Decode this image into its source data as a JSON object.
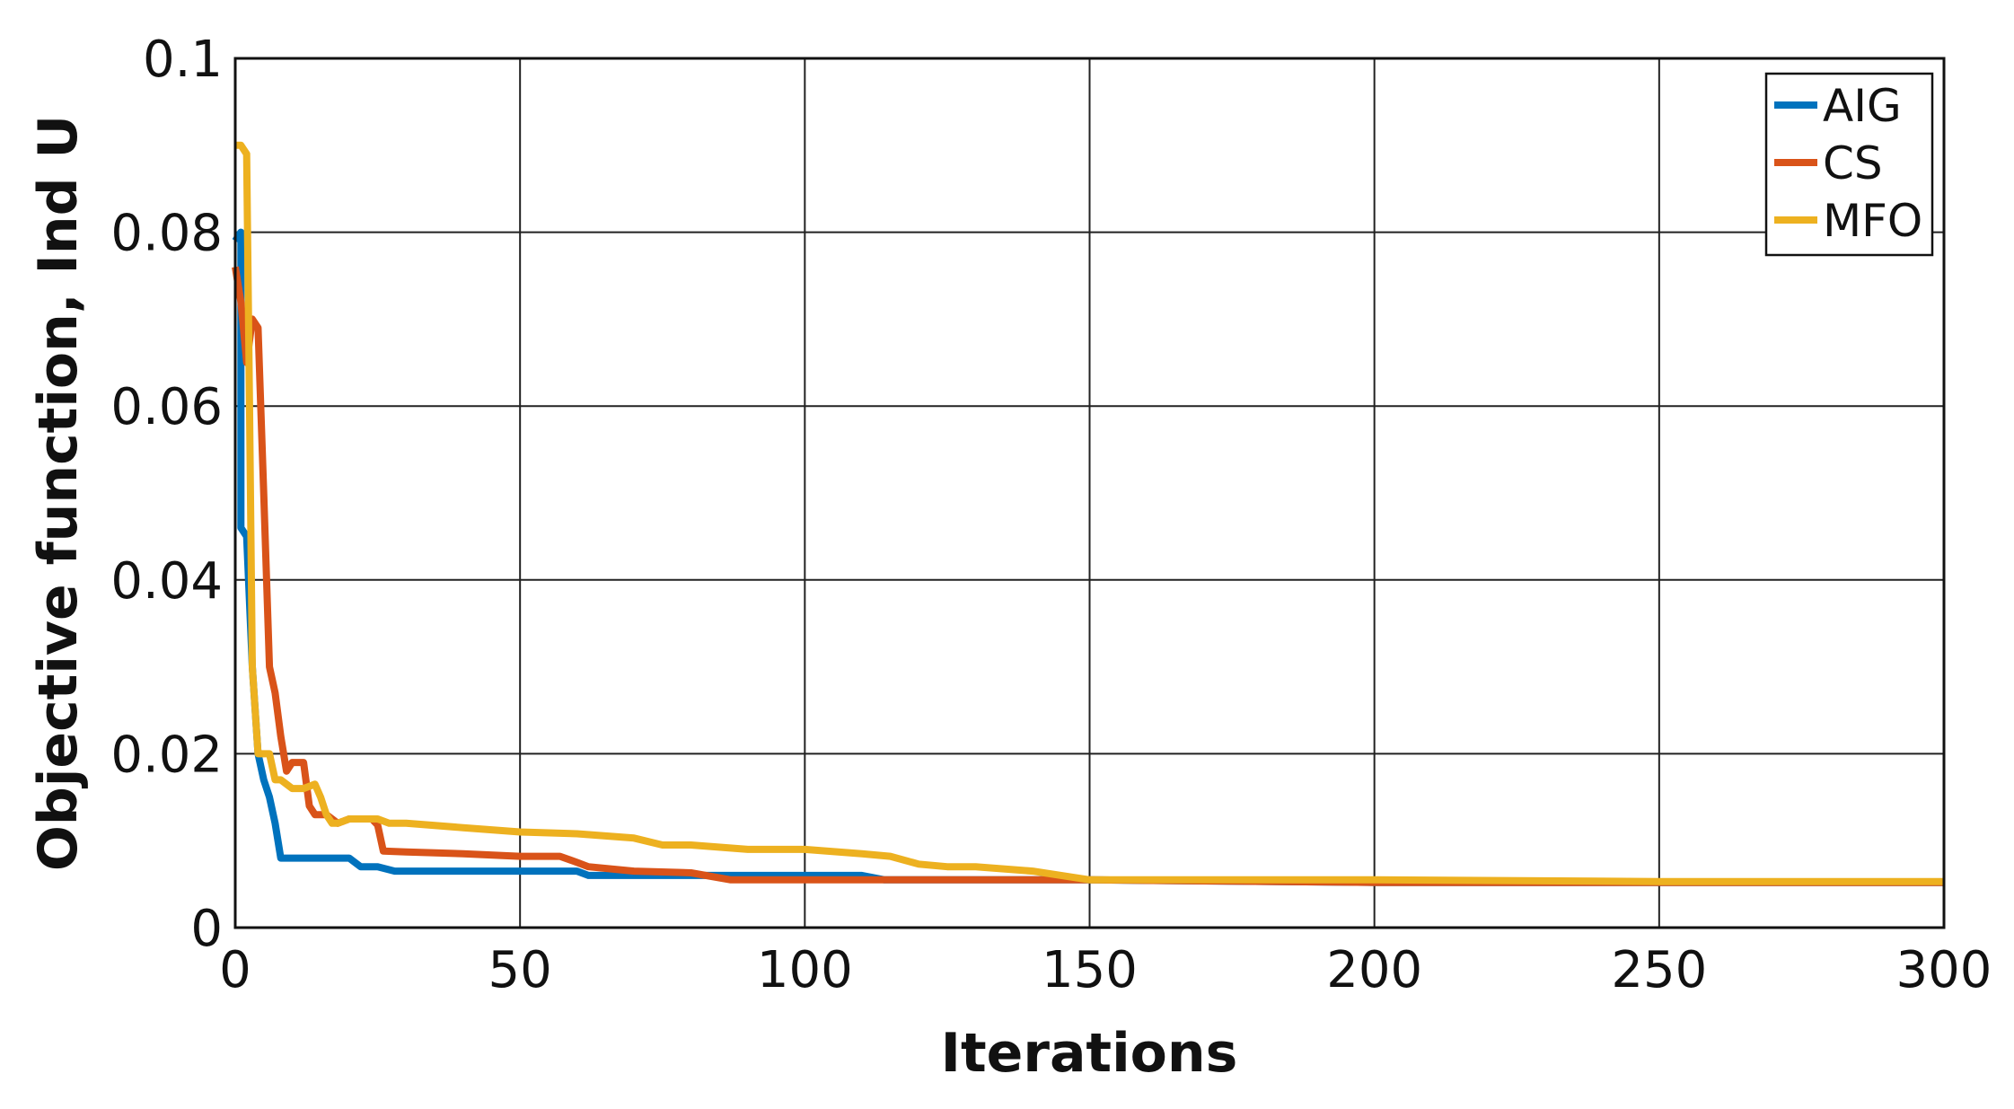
{
  "chart_data": {
    "type": "line",
    "title": "",
    "xlabel": "Iterations",
    "ylabel": "Objective function, Ind U",
    "xlim": [
      0,
      300
    ],
    "ylim": [
      0,
      0.1
    ],
    "xticks": [
      0,
      50,
      100,
      150,
      200,
      250,
      300
    ],
    "xtick_labels": [
      "0",
      "50",
      "100",
      "150",
      "200",
      "250",
      "300"
    ],
    "yticks": [
      0,
      0.02,
      0.04,
      0.06,
      0.08,
      0.1
    ],
    "ytick_labels": [
      "0",
      "0.02",
      "0.04",
      "0.06",
      "0.08",
      "0.1"
    ],
    "grid": true,
    "legend_position": "top-right",
    "series": [
      {
        "name": "AIG",
        "color": "#0072BD",
        "x": [
          0,
          1,
          1,
          2,
          3,
          4,
          5,
          6,
          7,
          8,
          10,
          15,
          20,
          22,
          25,
          28,
          30,
          40,
          50,
          60,
          62,
          70,
          80,
          90,
          100,
          110,
          114,
          150,
          200,
          250,
          300
        ],
        "y": [
          0.079,
          0.08,
          0.046,
          0.045,
          0.03,
          0.02,
          0.017,
          0.015,
          0.012,
          0.008,
          0.008,
          0.008,
          0.008,
          0.007,
          0.007,
          0.0065,
          0.0065,
          0.0065,
          0.0065,
          0.0065,
          0.006,
          0.006,
          0.006,
          0.006,
          0.006,
          0.006,
          0.0055,
          0.0055,
          0.0052,
          0.0052,
          0.0052
        ]
      },
      {
        "name": "CS",
        "color": "#D95319",
        "x": [
          0,
          1,
          2,
          3,
          4,
          5,
          6,
          7,
          8,
          9,
          10,
          12,
          13,
          14,
          16,
          18,
          20,
          24,
          25,
          26,
          30,
          40,
          50,
          57,
          60,
          62,
          70,
          80,
          87,
          90,
          100,
          120,
          150,
          200,
          250,
          300
        ],
        "y": [
          0.076,
          0.072,
          0.065,
          0.07,
          0.069,
          0.05,
          0.03,
          0.027,
          0.022,
          0.018,
          0.019,
          0.019,
          0.014,
          0.013,
          0.013,
          0.012,
          0.0125,
          0.0125,
          0.0118,
          0.0088,
          0.0087,
          0.0085,
          0.0082,
          0.0082,
          0.0075,
          0.007,
          0.0065,
          0.0063,
          0.0055,
          0.0055,
          0.0055,
          0.0055,
          0.0055,
          0.0052,
          0.0052,
          0.0052
        ]
      },
      {
        "name": "MFO",
        "color": "#EDB120",
        "x": [
          0,
          1,
          2,
          2.5,
          3,
          4,
          5,
          6,
          7,
          8,
          10,
          12,
          14,
          15,
          16,
          17,
          18,
          20,
          25,
          27,
          30,
          40,
          50,
          60,
          70,
          75,
          80,
          90,
          100,
          110,
          115,
          120,
          125,
          130,
          140,
          150,
          200,
          250,
          300
        ],
        "y": [
          0.09,
          0.09,
          0.089,
          0.06,
          0.03,
          0.02,
          0.02,
          0.02,
          0.017,
          0.017,
          0.016,
          0.016,
          0.0165,
          0.015,
          0.013,
          0.012,
          0.012,
          0.0125,
          0.0125,
          0.012,
          0.012,
          0.0115,
          0.011,
          0.0108,
          0.0103,
          0.0095,
          0.0095,
          0.009,
          0.009,
          0.0085,
          0.0082,
          0.0073,
          0.007,
          0.007,
          0.0065,
          0.0055,
          0.0055,
          0.0053,
          0.0053
        ]
      }
    ]
  }
}
